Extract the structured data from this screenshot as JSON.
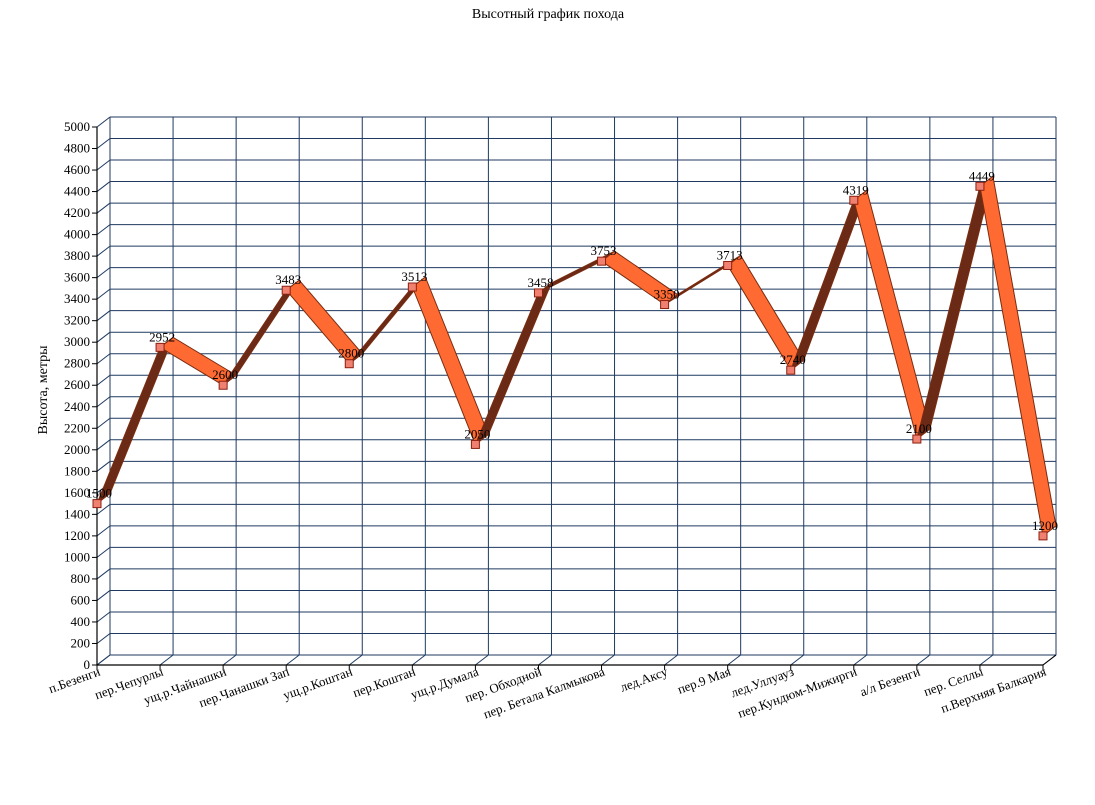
{
  "chart_data": {
    "type": "line",
    "title": "Высотный график похода",
    "ylabel": "Высота, метры",
    "xlabel": "",
    "ylim": [
      0,
      5000
    ],
    "ytick_step": 200,
    "grid": true,
    "legend": "none",
    "categories": [
      "п.Безенги",
      "пер.Чепурлы",
      "ущ.р.Чайнашки",
      "пер.Чанашки Зап",
      "ущ.р.Коштан",
      "пер.Коштан",
      "ущ.р.Думала",
      "пер. Обходной",
      "пер. Бетала Калмыкова",
      "лед.Аксу",
      "пер.9 Мая",
      "лед.Уллуауз",
      "пер.Кундюм-Мижирги",
      "а/л Безенги",
      "пер. Селлы",
      "п.Верхняя Балкария"
    ],
    "values": [
      1500,
      2952,
      2600,
      3483,
      2800,
      3513,
      2050,
      3458,
      3753,
      3350,
      3713,
      2740,
      4319,
      2100,
      4449,
      1200
    ],
    "data_labels": [
      "1500",
      "2952",
      "2600",
      "3483",
      "2800",
      "3513",
      "2050",
      "3458",
      "3753",
      "3350",
      "3713",
      "2740",
      "4319",
      "2100",
      "4449",
      "1200"
    ],
    "colors": {
      "grid": "#1f3a60",
      "ribbon_top": "#ff6a33",
      "ribbon_side": "#6b2a16",
      "ribbon_stroke": "#7a2c10",
      "marker_fill": "#f08070",
      "marker_stroke": "#8b2010"
    }
  }
}
